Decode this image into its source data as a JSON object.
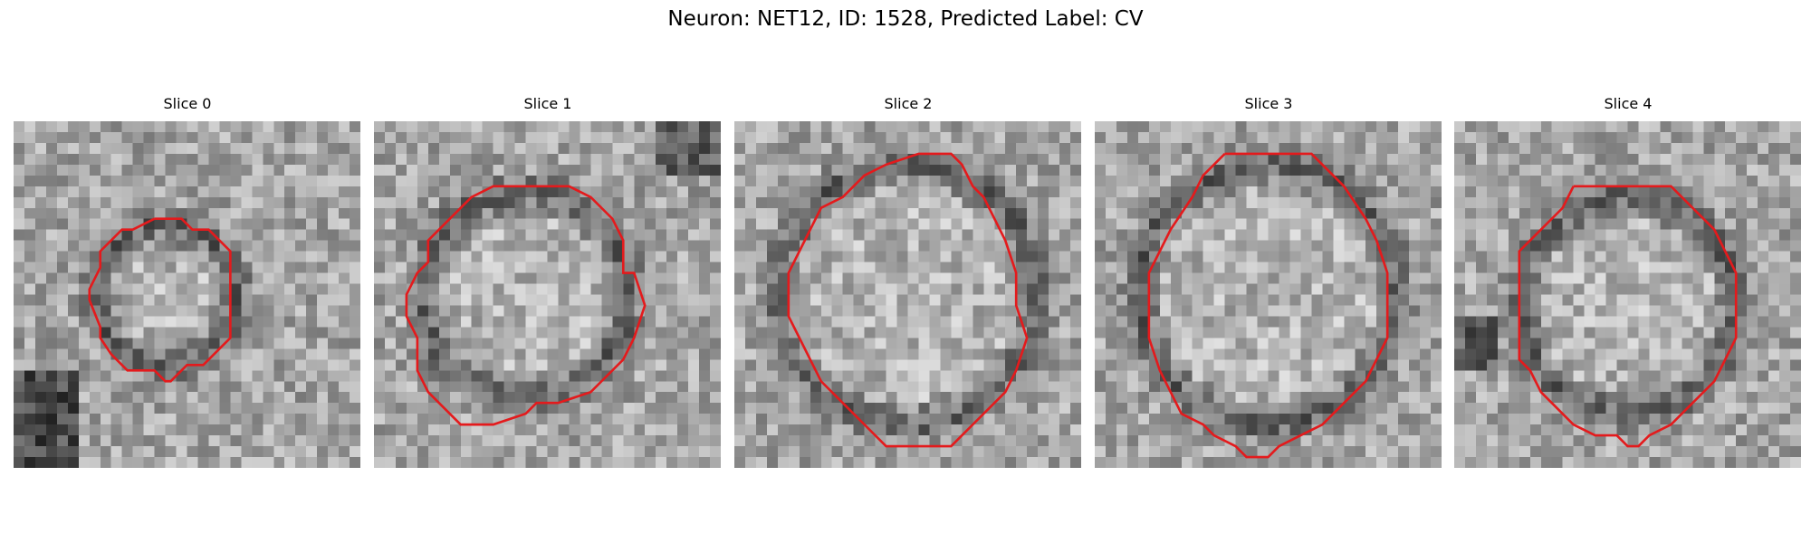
{
  "figure": {
    "title": "Neuron: NET12, ID: 1528, Predicted Label: CV"
  },
  "panels": [
    {
      "title": "Slice 0",
      "outline_color": "#e41a1c"
    },
    {
      "title": "Slice 1",
      "outline_color": "#e41a1c"
    },
    {
      "title": "Slice 2",
      "outline_color": "#e41a1c"
    },
    {
      "title": "Slice 3",
      "outline_color": "#e41a1c"
    },
    {
      "title": "Slice 4",
      "outline_color": "#e41a1c"
    }
  ],
  "image": {
    "colormap": "grayscale",
    "grid_size": 32
  }
}
